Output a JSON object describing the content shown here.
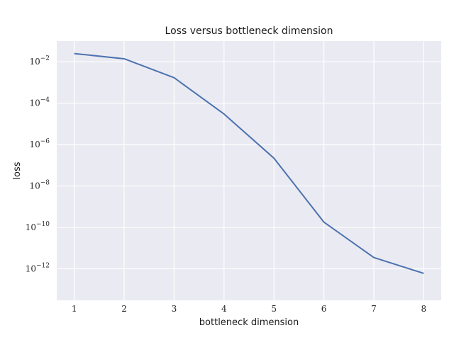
{
  "chart_data": {
    "type": "line",
    "title": "Loss versus bottleneck dimension",
    "xlabel": "bottleneck dimension",
    "ylabel": "loss",
    "yscale": "log",
    "xlim": [
      0.65,
      8.35
    ],
    "ylim": [
      3e-14,
      0.1
    ],
    "x_ticks": [
      1,
      2,
      3,
      4,
      5,
      6,
      7,
      8
    ],
    "y_ticks": [
      {
        "value": 1e-12,
        "base": "10",
        "exp": "−12"
      },
      {
        "value": 1e-10,
        "base": "10",
        "exp": "−10"
      },
      {
        "value": 1e-08,
        "base": "10",
        "exp": "−8"
      },
      {
        "value": 1e-06,
        "base": "10",
        "exp": "−6"
      },
      {
        "value": 0.0001,
        "base": "10",
        "exp": "−4"
      },
      {
        "value": 0.01,
        "base": "10",
        "exp": "−2"
      }
    ],
    "grid": true,
    "background_color": "#eaeaf2",
    "grid_color": "#ffffff",
    "series": [
      {
        "color": "#4c72b0",
        "x": [
          1,
          2,
          3,
          4,
          5,
          6,
          7,
          8
        ],
        "y": [
          0.025,
          0.014,
          0.0017,
          3e-05,
          2.2e-07,
          1.8e-10,
          3.5e-12,
          6e-13
        ]
      }
    ]
  }
}
